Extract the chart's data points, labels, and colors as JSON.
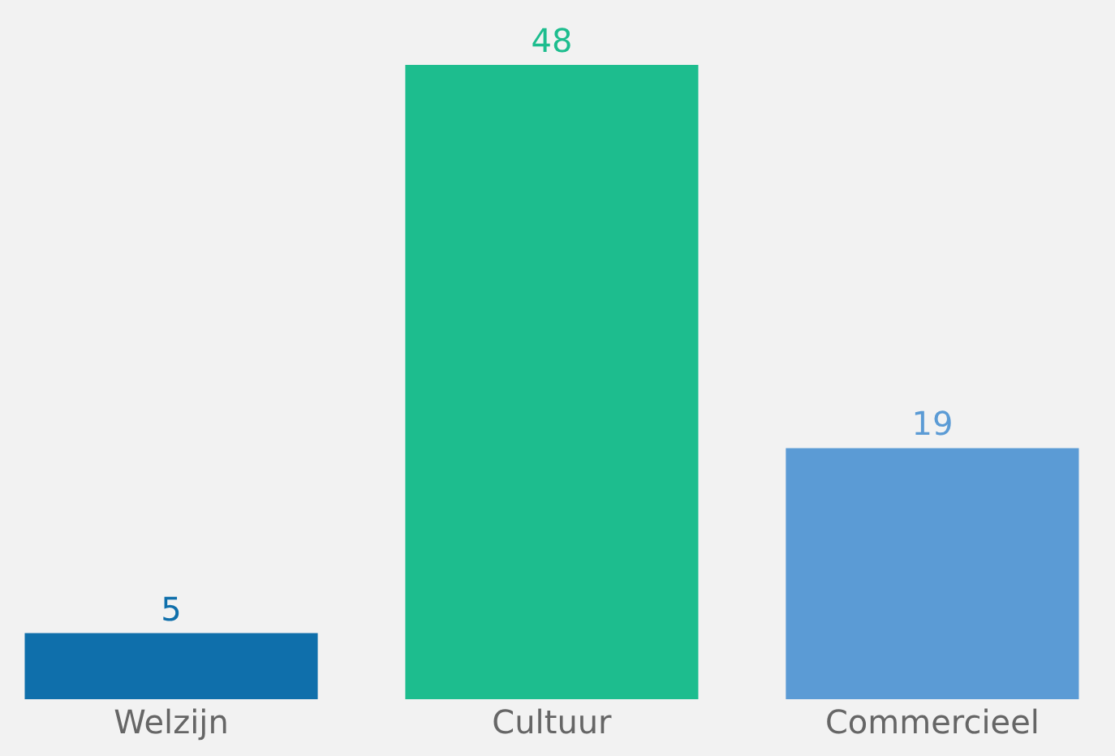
{
  "chart_data": {
    "type": "bar",
    "categories": [
      "Welzijn",
      "Cultuur",
      "Commercieel"
    ],
    "values": [
      5,
      48,
      19
    ],
    "colors": [
      "#0f6fab",
      "#1dbd8e",
      "#5b9bd5"
    ],
    "data_labels": true,
    "grid": false,
    "legend": false
  }
}
